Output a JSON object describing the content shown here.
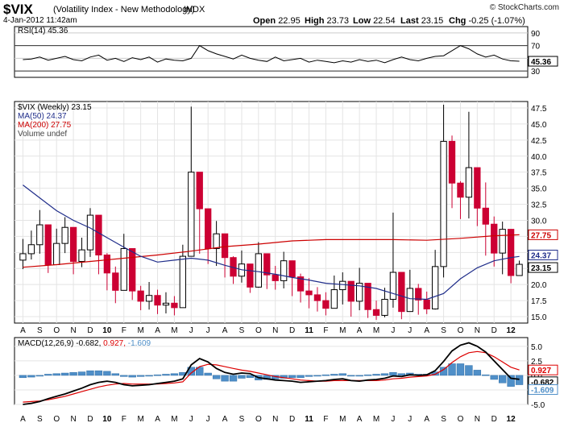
{
  "header": {
    "symbol": "$VIX",
    "name": "(Volatility Index - New Methodology)",
    "exchange": "INDX",
    "datetime": "4-Jan-2012 11:42am",
    "brand": "© StockCharts.com",
    "quote": {
      "open_label": "Open",
      "open": "22.95",
      "high_label": "High",
      "high": "23.73",
      "low_label": "Low",
      "low": "22.54",
      "last_label": "Last",
      "last": "23.15",
      "chg_label": "Chg",
      "chg": "-0.25 (-1.07%)"
    }
  },
  "colors": {
    "up": "#000000",
    "down": "#cc0033",
    "ma50": "#1f2d8a",
    "ma200": "#cc0000",
    "macd_line": "#000000",
    "signal_line": "#dd0000",
    "histogram": "#4f8fc8",
    "rsi_line": "#000000",
    "grid": "#cccccc"
  },
  "chart_data": [
    {
      "type": "line",
      "panel": "rsi",
      "legend": "RSI(14) 45.36",
      "ylim": [
        20,
        100
      ],
      "yticks": [
        30,
        50,
        70,
        90
      ],
      "reference_lines": [
        30,
        70
      ],
      "last_label": "45.36",
      "x": [
        0,
        0.5,
        1,
        1.5,
        2,
        2.5,
        3,
        3.5,
        4,
        4.5,
        5,
        5.5,
        6,
        6.5,
        7,
        7.5,
        8,
        8.5,
        9,
        9.5,
        10,
        10.5,
        11,
        11.5,
        12,
        12.5,
        13,
        13.5,
        14,
        14.5,
        15,
        15.5,
        16,
        16.5,
        17,
        17.5,
        18,
        18.5,
        19,
        19.5,
        20,
        20.5,
        21,
        21.5,
        22,
        22.5,
        23,
        23.5,
        24,
        24.5,
        25,
        25.5,
        26,
        26.5,
        27,
        27.5,
        28,
        28.5,
        29,
        29.5
      ],
      "values": [
        48,
        49,
        52,
        47,
        50,
        53,
        48,
        46,
        52,
        55,
        47,
        50,
        45,
        51,
        48,
        52,
        44,
        49,
        47,
        46,
        50,
        70,
        62,
        57,
        53,
        49,
        55,
        50,
        47,
        45,
        52,
        46,
        48,
        50,
        44,
        47,
        45,
        43,
        46,
        44,
        48,
        45,
        47,
        43,
        48,
        52,
        48,
        46,
        50,
        53,
        54,
        62,
        70,
        65,
        57,
        52,
        55,
        49,
        46,
        45.36
      ]
    },
    {
      "type": "candlestick",
      "panel": "price",
      "legend": [
        "$VIX (Weekly) 23.15",
        "MA(50) 24.37",
        "MA(200) 27.75",
        "Volume undef"
      ],
      "ylim": [
        14,
        48.5
      ],
      "yticks": [
        15,
        17.5,
        20,
        22.5,
        25,
        27.5,
        30,
        32.5,
        35,
        37.5,
        40,
        42.5,
        45,
        47.5
      ],
      "ytick_labels": [
        "15.0",
        "17.5",
        "20.0",
        "22.5",
        "25.0",
        "27.5",
        "30.0",
        "32.5",
        "35.0",
        "37.5",
        "40.0",
        "42.5",
        "45.0",
        "47.5"
      ],
      "value_labels": {
        "ma200": "27.75",
        "ma50": "24.37",
        "last": "23.15"
      },
      "x_axis_labels": [
        "A",
        "S",
        "O",
        "N",
        "D",
        "10",
        "F",
        "M",
        "A",
        "M",
        "J",
        "J",
        "A",
        "S",
        "O",
        "N",
        "D",
        "11",
        "F",
        "M",
        "A",
        "M",
        "J",
        "J",
        "A",
        "S",
        "O",
        "N",
        "D",
        "12"
      ],
      "x_axis_bold": [
        "10",
        "11",
        "12"
      ],
      "series": [
        {
          "name": "$VIX (Weekly)",
          "x": [
            0,
            0.5,
            1,
            1.5,
            2,
            2.5,
            3,
            3.5,
            4,
            4.5,
            5,
            5.5,
            6,
            6.5,
            7,
            7.5,
            8,
            8.5,
            9,
            9.5,
            10,
            10.5,
            11,
            11.5,
            12,
            12.5,
            13,
            13.5,
            14,
            14.5,
            15,
            15.5,
            16,
            16.5,
            17,
            17.5,
            18,
            18.5,
            19,
            19.5,
            20,
            20.5,
            21,
            21.5,
            22,
            22.5,
            23,
            23.5,
            24,
            24.5,
            25,
            25.5,
            26,
            26.5,
            27,
            27.5,
            28,
            28.5,
            29,
            29.5
          ],
          "close": [
            24.8,
            26.2,
            29.3,
            23.1,
            26.4,
            28.9,
            23.6,
            25.4,
            30.8,
            24.6,
            21.8,
            19.1,
            25.6,
            19.0,
            17.4,
            18.3,
            16.8,
            17.1,
            16.4,
            24.4,
            37.5,
            31.8,
            25.6,
            27.9,
            24.2,
            21.3,
            23.2,
            19.6,
            24.8,
            21.5,
            20.6,
            23.7,
            21.2,
            19.0,
            18.4,
            17.5,
            16.3,
            19.2,
            20.5,
            17.4,
            20.2,
            16.1,
            15.2,
            17.7,
            21.9,
            15.8,
            19.4,
            17.6,
            16.2,
            22.8,
            42.3,
            35.8,
            33.6,
            38.2,
            31.9,
            29.4,
            24.9,
            28.6,
            21.4,
            23.15
          ],
          "high": [
            27.1,
            28.4,
            31.6,
            26.8,
            28.7,
            30.5,
            26.2,
            27.3,
            31.9,
            27.2,
            24.9,
            22.8,
            27.9,
            23.1,
            19.8,
            20.4,
            19.2,
            18.8,
            18.2,
            26.2,
            47.7,
            35.6,
            29.2,
            29.9,
            27.1,
            24.4,
            25.3,
            23.0,
            26.6,
            24.0,
            22.9,
            25.1,
            23.5,
            21.7,
            21.0,
            19.6,
            18.8,
            21.4,
            21.9,
            19.7,
            22.6,
            18.4,
            17.5,
            19.5,
            31.2,
            19.8,
            22.3,
            20.1,
            18.9,
            25.4,
            48.0,
            43.2,
            36.1,
            46.9,
            37.9,
            35.9,
            30.6,
            29.8,
            26.1,
            23.73
          ],
          "low": [
            22.4,
            23.9,
            24.8,
            21.8,
            23.6,
            24.9,
            21.6,
            22.7,
            24.3,
            21.6,
            19.1,
            17.1,
            19.4,
            17.6,
            16.0,
            16.1,
            15.4,
            15.5,
            15.2,
            17.0,
            29.9,
            24.8,
            23.2,
            22.9,
            21.1,
            20.1,
            20.3,
            18.7,
            19.5,
            19.3,
            19.2,
            19.4,
            18.2,
            17.2,
            16.3,
            15.8,
            15.2,
            16.8,
            16.9,
            15.0,
            16.0,
            14.8,
            14.5,
            14.9,
            16.4,
            14.6,
            16.2,
            15.3,
            15.4,
            16.1,
            21.1,
            31.9,
            30.2,
            30.3,
            29.1,
            24.5,
            22.8,
            21.6,
            20.2,
            22.54
          ]
        },
        {
          "name": "MA(50)",
          "x": [
            0,
            1,
            2,
            3,
            4,
            5,
            6,
            7,
            8,
            9,
            10,
            11,
            12,
            13,
            14,
            15,
            16,
            17,
            18,
            19,
            20,
            21,
            22,
            23,
            24,
            25,
            26,
            27,
            28,
            29,
            29.5
          ],
          "values": [
            35.5,
            33.5,
            31.5,
            30.0,
            28.8,
            27.3,
            25.8,
            24.4,
            23.5,
            23.8,
            24.1,
            23.8,
            23.0,
            22.3,
            22.0,
            21.6,
            21.1,
            20.7,
            20.2,
            20.0,
            19.8,
            19.4,
            18.6,
            17.8,
            17.7,
            18.6,
            20.9,
            22.6,
            23.7,
            24.2,
            24.37
          ]
        },
        {
          "name": "MA(200)",
          "x": [
            0,
            2,
            4,
            6,
            8,
            10,
            12,
            14,
            16,
            18,
            20,
            22,
            24,
            26,
            28,
            29.5
          ],
          "values": [
            22.7,
            23.1,
            23.6,
            24.1,
            24.6,
            25.2,
            25.9,
            26.3,
            26.8,
            27.0,
            27.0,
            27.0,
            26.9,
            27.2,
            27.6,
            27.75
          ]
        }
      ]
    },
    {
      "type": "line",
      "panel": "macd",
      "legend": "MACD(12,26,9) -0.682, 0.927, -1.609",
      "legend_parts": {
        "label": "MACD(12,26,9)",
        "macd": "-0.682",
        "signal": "0.927",
        "hist": "-1.609"
      },
      "ylim": [
        -5,
        6.5
      ],
      "yticks": [
        -5.0,
        -2.5,
        0,
        2.5,
        5.0
      ],
      "ytick_labels": [
        "-5.0",
        "-2.5",
        "0.0",
        "2.5",
        "5.0"
      ],
      "value_labels": {
        "signal": "0.927",
        "macd": "-0.682",
        "hist": "-1.609"
      },
      "x": [
        0,
        0.5,
        1,
        1.5,
        2,
        2.5,
        3,
        3.5,
        4,
        4.5,
        5,
        5.5,
        6,
        6.5,
        7,
        7.5,
        8,
        8.5,
        9,
        9.5,
        10,
        10.5,
        11,
        11.5,
        12,
        12.5,
        13,
        13.5,
        14,
        14.5,
        15,
        15.5,
        16,
        16.5,
        17,
        17.5,
        18,
        18.5,
        19,
        19.5,
        20,
        20.5,
        21,
        21.5,
        22,
        22.5,
        23,
        23.5,
        24,
        24.5,
        25,
        25.5,
        26,
        26.5,
        27,
        27.5,
        28,
        28.5,
        29,
        29.5
      ],
      "series": [
        {
          "name": "MACD",
          "values": [
            -5.0,
            -4.8,
            -4.5,
            -4.0,
            -3.6,
            -3.2,
            -2.7,
            -2.2,
            -1.6,
            -1.2,
            -1.0,
            -1.2,
            -1.6,
            -1.8,
            -1.7,
            -1.6,
            -1.4,
            -1.2,
            -1.0,
            -0.6,
            1.8,
            2.9,
            2.3,
            1.2,
            0.5,
            0.2,
            0.4,
            0.3,
            -0.4,
            -0.6,
            -0.8,
            -0.9,
            -1.0,
            -1.2,
            -1.1,
            -1.0,
            -0.9,
            -0.7,
            -0.6,
            -0.9,
            -1.0,
            -0.8,
            -0.7,
            -0.5,
            -0.1,
            -0.2,
            0.1,
            0.0,
            0.1,
            0.8,
            2.4,
            4.2,
            5.2,
            5.6,
            5.0,
            4.0,
            2.5,
            1.0,
            -0.5,
            -0.682
          ]
        },
        {
          "name": "Signal",
          "values": [
            -4.6,
            -4.5,
            -4.4,
            -4.2,
            -3.9,
            -3.6,
            -3.2,
            -2.8,
            -2.4,
            -2.0,
            -1.7,
            -1.5,
            -1.4,
            -1.5,
            -1.5,
            -1.5,
            -1.5,
            -1.4,
            -1.3,
            -1.1,
            0.4,
            1.5,
            1.9,
            1.8,
            1.5,
            1.2,
            0.9,
            0.7,
            0.4,
            0.1,
            -0.2,
            -0.4,
            -0.6,
            -0.8,
            -0.9,
            -1.0,
            -1.0,
            -0.9,
            -0.9,
            -0.9,
            -0.9,
            -0.9,
            -0.9,
            -0.8,
            -0.6,
            -0.5,
            -0.3,
            -0.2,
            -0.1,
            0.2,
            1.0,
            2.2,
            3.2,
            3.9,
            4.1,
            3.9,
            3.2,
            2.3,
            1.4,
            0.927
          ]
        },
        {
          "name": "Histogram",
          "values": [
            -0.4,
            -0.3,
            -0.1,
            0.2,
            0.3,
            0.4,
            0.5,
            0.6,
            0.8,
            0.8,
            0.7,
            0.3,
            -0.2,
            -0.3,
            -0.2,
            -0.1,
            0.1,
            0.2,
            0.3,
            0.5,
            1.4,
            1.4,
            0.4,
            -0.6,
            -1.0,
            -1.0,
            -0.5,
            -0.4,
            -0.8,
            -0.7,
            -0.6,
            -0.5,
            -0.4,
            -0.4,
            -0.2,
            0.0,
            0.1,
            0.2,
            0.3,
            0.0,
            -0.1,
            0.1,
            0.2,
            0.3,
            0.5,
            0.3,
            0.4,
            0.2,
            0.2,
            0.6,
            1.4,
            2.0,
            2.0,
            1.7,
            0.9,
            0.1,
            -0.7,
            -1.3,
            -1.9,
            -1.609
          ]
        }
      ]
    }
  ]
}
